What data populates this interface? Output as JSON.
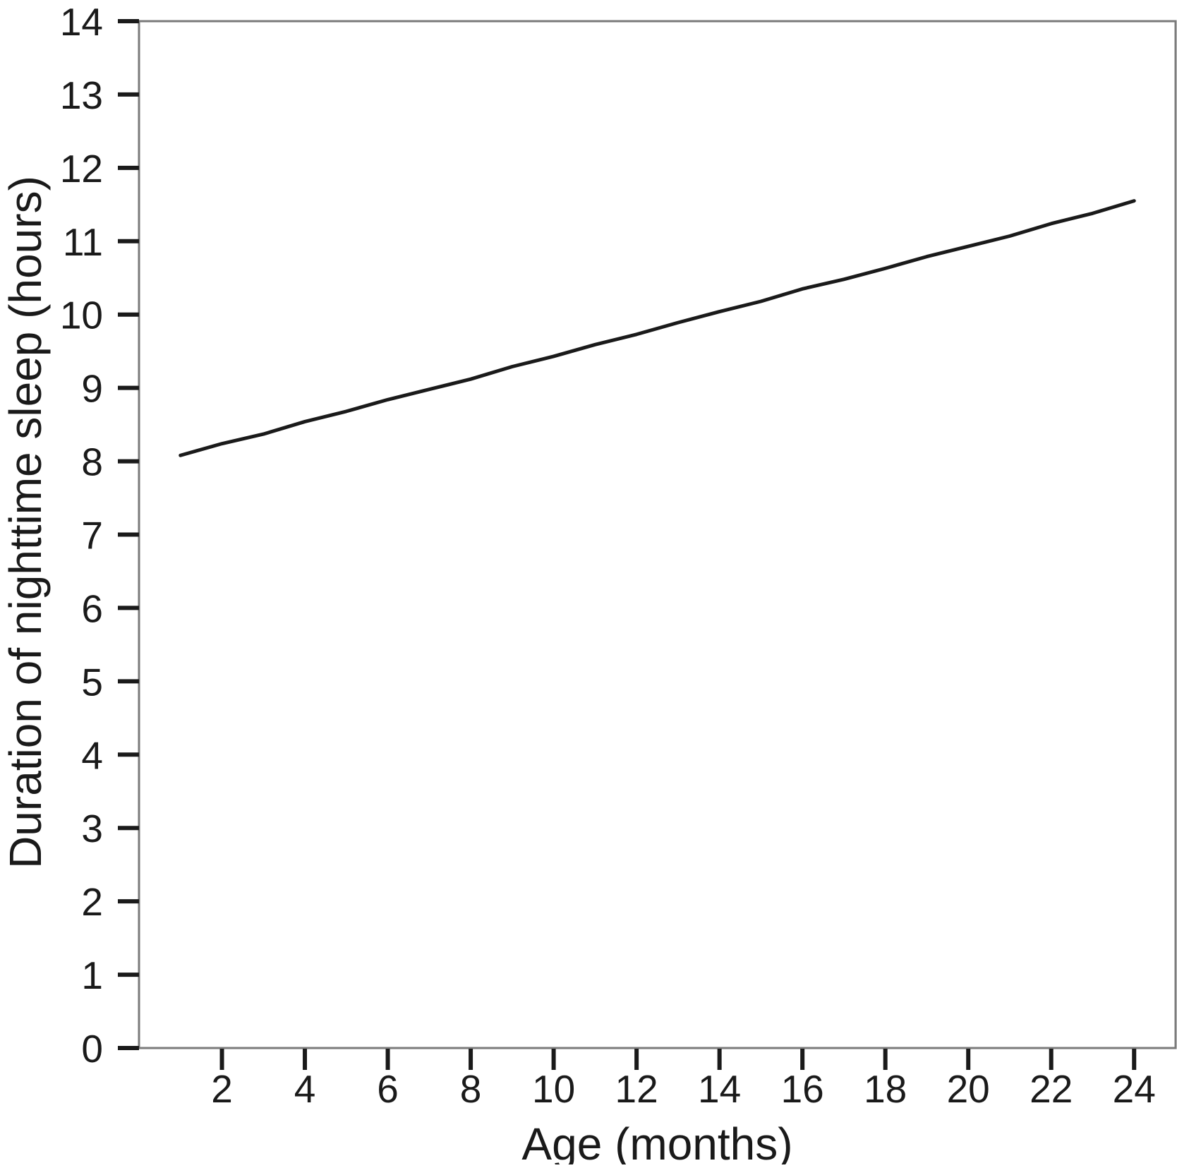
{
  "figure": {
    "background_color": "#ffffff",
    "frame_color": "#7a7a7a",
    "tick_color": "#1a1a1a",
    "text_color": "#1a1a1a",
    "line_color": "#1a1a1a"
  },
  "chart_data": {
    "type": "line",
    "title": "",
    "xlabel": "Age (months)",
    "ylabel": "Duration of nighttime sleep (hours)",
    "xlim": [
      0,
      25
    ],
    "ylim": [
      0,
      14
    ],
    "x_ticks": [
      2,
      4,
      6,
      8,
      10,
      12,
      14,
      16,
      18,
      20,
      22,
      24
    ],
    "y_ticks": [
      0,
      1,
      2,
      3,
      4,
      5,
      6,
      7,
      8,
      9,
      10,
      11,
      12,
      13,
      14
    ],
    "grid": false,
    "legend": "none",
    "series": [
      {
        "name": "Duration of nighttime sleep",
        "color": "#1a1a1a",
        "x": [
          1,
          2,
          3,
          4,
          5,
          6,
          7,
          8,
          9,
          10,
          11,
          12,
          13,
          14,
          15,
          16,
          17,
          18,
          19,
          20,
          21,
          22,
          23,
          24
        ],
        "y": [
          8.08,
          8.24,
          8.37,
          8.54,
          8.68,
          8.84,
          8.98,
          9.12,
          9.29,
          9.43,
          9.59,
          9.73,
          9.89,
          10.04,
          10.18,
          10.35,
          10.48,
          10.63,
          10.79,
          10.93,
          11.07,
          11.24,
          11.38,
          11.55
        ]
      }
    ]
  }
}
